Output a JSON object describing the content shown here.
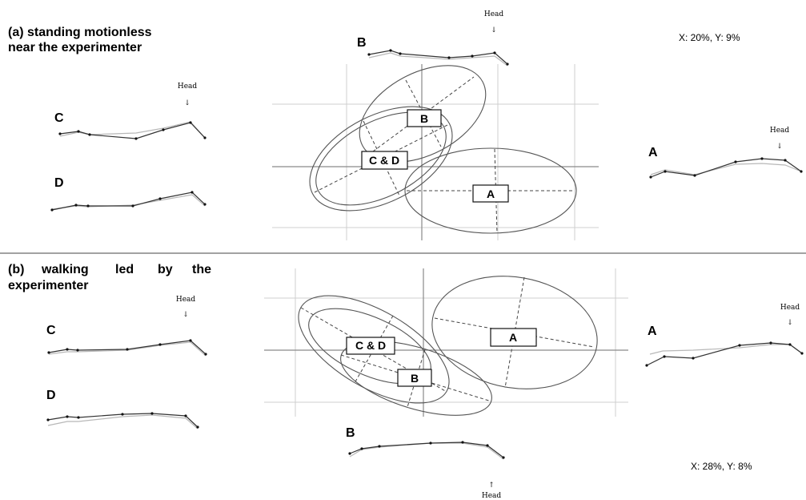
{
  "panel_a": {
    "title_line1": "(a) standing motionless",
    "title_line2": "near the experimenter",
    "stat": "X: 20%, Y: 9%",
    "box_b": "B",
    "box_cd": "C & D",
    "box_a": "A",
    "letter_c": "C",
    "letter_d": "D",
    "letter_b": "B",
    "letter_a": "A",
    "head_c": "Head",
    "head_b": "Head",
    "head_a": "Head"
  },
  "panel_b": {
    "title_line1_word1": "(b)",
    "title_line1_word2": "walking",
    "title_line1_word3": "led",
    "title_line1_word4": "by",
    "title_line1_word5": "the",
    "title_line2": "experimenter",
    "stat": "X: 28%, Y: 8%",
    "box_a": "A",
    "box_cd": "C & D",
    "box_b": "B",
    "letter_c": "C",
    "letter_d": "D",
    "letter_b": "B",
    "letter_a": "A",
    "head_c": "Head",
    "head_a": "Head",
    "head_b": "Head"
  },
  "arrows": {
    "down": "↓",
    "up": "↑"
  },
  "colors": {
    "ink": "#111111",
    "mean_line": "#333333",
    "sd_line": "#b8b8b8",
    "grid": "#cfcfcf",
    "axis": "#8a8a8a",
    "ellipse": "#555555"
  }
}
